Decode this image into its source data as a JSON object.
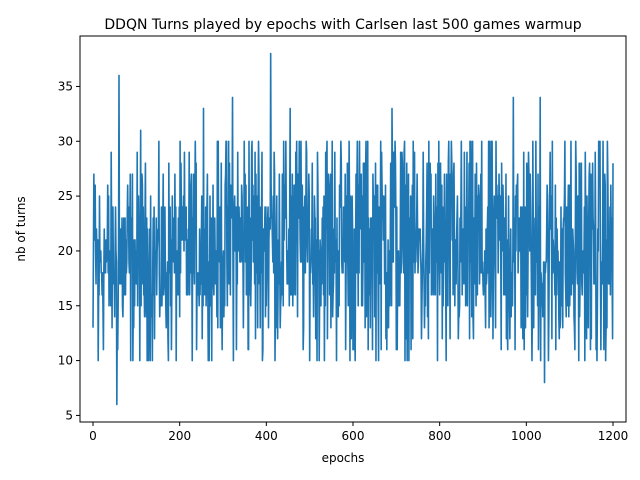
{
  "chart_data": {
    "type": "line",
    "title": "DDQN Turns played by epochs with Carlsen last 500 games warmup",
    "xlabel": "epochs",
    "ylabel": "nb of turns",
    "xlim": [
      -30,
      1230
    ],
    "ylim": [
      4.4,
      39.6
    ],
    "xticks": [
      0,
      200,
      400,
      600,
      800,
      1000,
      1200
    ],
    "yticks": [
      5,
      10,
      15,
      20,
      25,
      30,
      35
    ],
    "grid": false,
    "legend": "none",
    "series": [
      {
        "color": "#1f77b4",
        "x_start": 0,
        "x_step": 1,
        "n_points": 1201,
        "min": 6,
        "max": 38,
        "mean_approx": 20,
        "notable_points": [
          {
            "x": 0,
            "y": 13
          },
          {
            "x": 5,
            "y": 26
          },
          {
            "x": 12,
            "y": 10
          },
          {
            "x": 55,
            "y": 6
          },
          {
            "x": 60,
            "y": 36
          },
          {
            "x": 110,
            "y": 31
          },
          {
            "x": 255,
            "y": 33
          },
          {
            "x": 322,
            "y": 34
          },
          {
            "x": 410,
            "y": 38
          },
          {
            "x": 455,
            "y": 33
          },
          {
            "x": 605,
            "y": 10
          },
          {
            "x": 690,
            "y": 33
          },
          {
            "x": 815,
            "y": 10
          },
          {
            "x": 970,
            "y": 34
          },
          {
            "x": 1032,
            "y": 34
          },
          {
            "x": 1042,
            "y": 8
          },
          {
            "x": 1112,
            "y": 11
          },
          {
            "x": 1200,
            "y": 28
          }
        ]
      }
    ]
  }
}
